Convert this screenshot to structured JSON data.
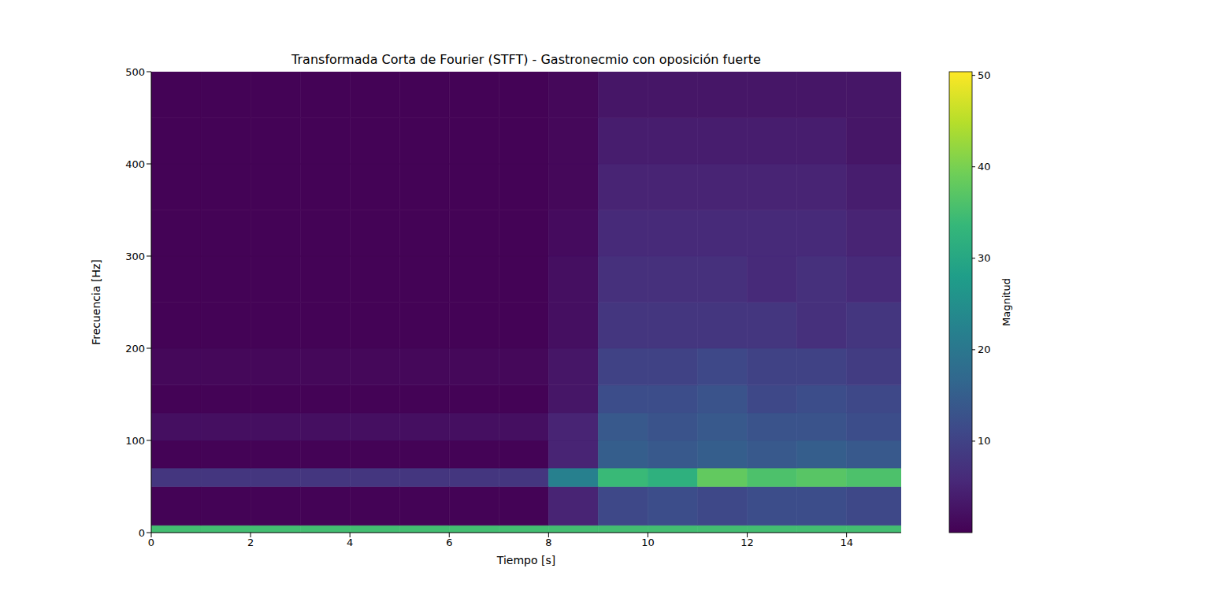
{
  "chart_data": {
    "type": "heatmap",
    "title": "Transformada Corta de Fourier (STFT) - Gastronecmio con oposición fuerte",
    "x_label": "Tiempo [s]",
    "y_label": "Frecuencia [Hz]",
    "xlim": [
      0,
      15.1
    ],
    "xticks": [
      0,
      2,
      4,
      6,
      8,
      10,
      12,
      14
    ],
    "ylim": [
      0,
      500
    ],
    "yticks": [
      0,
      100,
      200,
      300,
      400,
      500
    ],
    "color": "viridis",
    "x_edges": [
      0,
      1,
      2,
      3,
      4,
      5,
      6,
      7,
      8,
      9,
      10,
      11,
      12,
      13,
      14,
      15.1
    ],
    "y_edges": [
      0,
      8,
      50,
      70,
      100,
      130,
      160,
      200,
      250,
      300,
      350,
      400,
      450,
      500
    ],
    "cells": [
      [
        35,
        35,
        35,
        35,
        35,
        35,
        35,
        35,
        35,
        35,
        35,
        35,
        35,
        35,
        35
      ],
      [
        0.3,
        0.3,
        0.3,
        0.3,
        0.3,
        0.3,
        0.3,
        0.3,
        5,
        11,
        12,
        11,
        12,
        12,
        11
      ],
      [
        8,
        8,
        8,
        8,
        8,
        8,
        8,
        8,
        22,
        34,
        32,
        38,
        36,
        37,
        36
      ],
      [
        0.3,
        0.3,
        0.3,
        0.3,
        0.3,
        0.3,
        0.3,
        0.3,
        5,
        15,
        14,
        15,
        14,
        15,
        14
      ],
      [
        2,
        2,
        2,
        2,
        2,
        2,
        2,
        2,
        5,
        14,
        13,
        14,
        13,
        13,
        12
      ],
      [
        0.3,
        0.3,
        0.3,
        0.3,
        0.3,
        0.3,
        0.3,
        0.3,
        3,
        12,
        12,
        13,
        11,
        12,
        11
      ],
      [
        1,
        1,
        1,
        1,
        1,
        1,
        1,
        1,
        3,
        10,
        10,
        11,
        10,
        10,
        9
      ],
      [
        0.3,
        0.3,
        0.3,
        0.3,
        0.3,
        0.3,
        0.3,
        0.3,
        2,
        8,
        8,
        8,
        8,
        7,
        8
      ],
      [
        0.3,
        0.3,
        0.3,
        0.3,
        0.3,
        0.3,
        0.3,
        0.3,
        2,
        7,
        7,
        7,
        6,
        7,
        6
      ],
      [
        0.3,
        0.3,
        0.3,
        0.3,
        0.3,
        0.3,
        0.3,
        0.3,
        1.5,
        6,
        6,
        6,
        6,
        6,
        5
      ],
      [
        0.3,
        0.3,
        0.3,
        0.3,
        0.3,
        0.3,
        0.3,
        0.3,
        1,
        5,
        5,
        5,
        5,
        5,
        4
      ],
      [
        0.3,
        0.3,
        0.3,
        0.3,
        0.3,
        0.3,
        0.3,
        0.3,
        1,
        4,
        4,
        4,
        4,
        4,
        3
      ],
      [
        0.3,
        0.3,
        0.3,
        0.3,
        0.3,
        0.3,
        0.3,
        0.3,
        1,
        3,
        3,
        3,
        3,
        3,
        3
      ]
    ],
    "colorbar": {
      "label": "Magnitud",
      "range": [
        0,
        50.4
      ],
      "ticks": [
        10,
        20,
        30,
        40,
        50
      ]
    }
  }
}
